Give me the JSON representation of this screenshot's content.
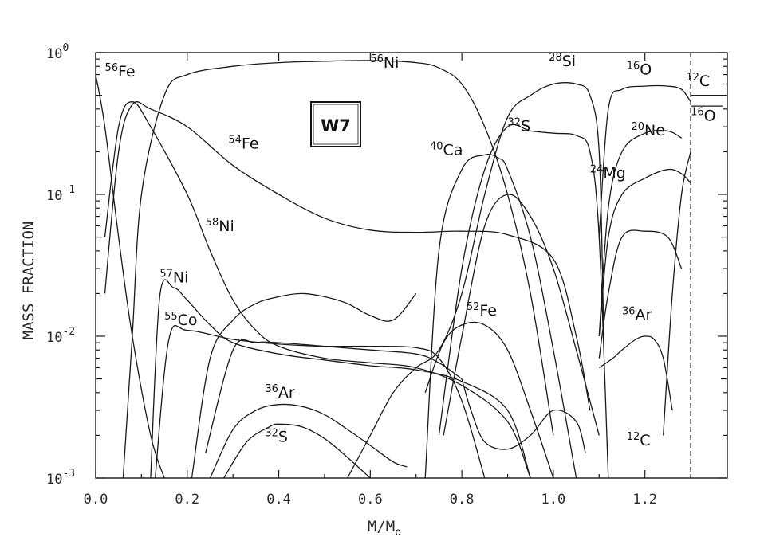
{
  "chart_data": {
    "type": "line",
    "title": "",
    "xlabel": "M/M",
    "xlabel_sub": "o",
    "ylabel": "MASS FRACTION",
    "box_label": "W7",
    "xlim": [
      0.0,
      1.38
    ],
    "ylim": [
      0.001,
      1.0
    ],
    "yscale": "log",
    "grid": false,
    "x_ticks": [
      0.0,
      0.2,
      0.4,
      0.6,
      0.8,
      1.0,
      1.2
    ],
    "x_tick_labels": [
      "0.0",
      "0.2",
      "0.4",
      "0.6",
      "0.8",
      "1.0",
      "1.2"
    ],
    "y_ticks": [
      0.001,
      0.01,
      0.1,
      1.0
    ],
    "y_tick_labels": [
      {
        "base": "10",
        "exp": "-3"
      },
      {
        "base": "10",
        "exp": "-2"
      },
      {
        "base": "10",
        "exp": "-1"
      },
      {
        "base": "10",
        "exp": "0"
      }
    ],
    "boundary_x": 1.3,
    "series": [
      {
        "name": "56Fe",
        "x": [
          0.0,
          0.02,
          0.05,
          0.08,
          0.12,
          0.15
        ],
        "y": [
          0.7,
          0.3,
          0.05,
          0.01,
          0.002,
          0.001
        ]
      },
      {
        "name": "56Ni",
        "x": [
          0.06,
          0.08,
          0.1,
          0.15,
          0.2,
          0.3,
          0.4,
          0.5,
          0.6,
          0.7,
          0.75,
          0.8,
          0.85,
          0.9,
          0.95,
          1.0
        ],
        "y": [
          0.001,
          0.01,
          0.1,
          0.5,
          0.7,
          0.8,
          0.85,
          0.87,
          0.88,
          0.85,
          0.78,
          0.6,
          0.3,
          0.1,
          0.02,
          0.002
        ]
      },
      {
        "name": "54Fe",
        "x": [
          0.02,
          0.05,
          0.08,
          0.12,
          0.2,
          0.3,
          0.4,
          0.5,
          0.6,
          0.7,
          0.8,
          0.9,
          1.0,
          1.05,
          1.08
        ],
        "y": [
          0.02,
          0.2,
          0.43,
          0.4,
          0.3,
          0.16,
          0.1,
          0.068,
          0.056,
          0.054,
          0.055,
          0.052,
          0.035,
          0.01,
          0.003
        ]
      },
      {
        "name": "58Ni",
        "x": [
          0.02,
          0.05,
          0.08,
          0.12,
          0.2,
          0.25,
          0.3,
          0.35,
          0.4,
          0.5,
          0.6,
          0.7,
          0.8,
          0.9,
          0.95
        ],
        "y": [
          0.05,
          0.3,
          0.45,
          0.3,
          0.1,
          0.04,
          0.018,
          0.011,
          0.0085,
          0.007,
          0.0065,
          0.006,
          0.0045,
          0.0025,
          0.001
        ]
      },
      {
        "name": "57Ni",
        "x": [
          0.12,
          0.14,
          0.17,
          0.2,
          0.25,
          0.3,
          0.4,
          0.5,
          0.6,
          0.7,
          0.8,
          0.9,
          0.95
        ],
        "y": [
          0.001,
          0.019,
          0.022,
          0.018,
          0.012,
          0.009,
          0.0075,
          0.0068,
          0.0062,
          0.0058,
          0.0048,
          0.003,
          0.001
        ]
      },
      {
        "name": "55Co",
        "x": [
          0.13,
          0.16,
          0.2,
          0.3,
          0.4,
          0.5,
          0.6,
          0.7,
          0.75,
          0.8,
          0.85
        ],
        "y": [
          0.001,
          0.0095,
          0.011,
          0.0095,
          0.0088,
          0.0085,
          0.0085,
          0.0083,
          0.007,
          0.0035,
          0.001
        ]
      },
      {
        "name": "36Ar",
        "x": [
          0.25,
          0.3,
          0.35,
          0.4,
          0.45,
          0.5,
          0.55,
          0.6,
          0.65,
          0.68
        ],
        "y": [
          0.001,
          0.0022,
          0.003,
          0.0033,
          0.0032,
          0.0028,
          0.0022,
          0.0017,
          0.0013,
          0.0012
        ]
      },
      {
        "name": "32S",
        "x": [
          0.28,
          0.33,
          0.38,
          0.4,
          0.45,
          0.5,
          0.55,
          0.6
        ],
        "y": [
          0.001,
          0.0018,
          0.0023,
          0.0024,
          0.0023,
          0.0019,
          0.0014,
          0.001
        ]
      },
      {
        "name": "",
        "x": [
          0.21,
          0.25,
          0.3,
          0.35,
          0.4,
          0.45,
          0.5,
          0.55,
          0.6,
          0.65,
          0.7
        ],
        "y": [
          0.001,
          0.007,
          0.013,
          0.017,
          0.019,
          0.02,
          0.019,
          0.017,
          0.014,
          0.013,
          0.02
        ]
      },
      {
        "name": "",
        "x": [
          0.24,
          0.3,
          0.35,
          0.4,
          0.5,
          0.6,
          0.7,
          0.75,
          0.8
        ],
        "y": [
          0.0015,
          0.008,
          0.009,
          0.009,
          0.0085,
          0.008,
          0.0075,
          0.0065,
          0.005
        ]
      },
      {
        "name": "28Si",
        "x": [
          0.55,
          0.6,
          0.65,
          0.7,
          0.75,
          0.8,
          0.85,
          0.9,
          0.95,
          1.0,
          1.05,
          1.08,
          1.1,
          1.11
        ],
        "y": [
          0.001,
          0.002,
          0.004,
          0.006,
          0.008,
          0.02,
          0.1,
          0.35,
          0.5,
          0.6,
          0.6,
          0.5,
          0.2,
          0.01
        ]
      },
      {
        "name": "32S",
        "x": [
          0.75,
          0.8,
          0.85,
          0.9,
          0.95,
          1.0,
          1.05,
          1.08,
          1.1,
          1.12
        ],
        "y": [
          0.002,
          0.03,
          0.15,
          0.3,
          0.28,
          0.27,
          0.26,
          0.2,
          0.05,
          0.001
        ]
      },
      {
        "name": "40Ca",
        "x": [
          0.72,
          0.75,
          0.8,
          0.85,
          0.88,
          0.9,
          0.95,
          1.0,
          1.05
        ],
        "y": [
          0.001,
          0.04,
          0.15,
          0.19,
          0.18,
          0.15,
          0.05,
          0.008,
          0.001
        ]
      },
      {
        "name": "52Fe",
        "x": [
          0.72,
          0.76,
          0.8,
          0.85,
          0.9,
          0.95,
          1.0
        ],
        "y": [
          0.004,
          0.009,
          0.012,
          0.012,
          0.008,
          0.003,
          0.001
        ]
      },
      {
        "name": "",
        "x": [
          0.76,
          0.8,
          0.85,
          0.9,
          0.95,
          1.0,
          1.05,
          1.1
        ],
        "y": [
          0.002,
          0.01,
          0.06,
          0.1,
          0.07,
          0.03,
          0.008,
          0.002
        ]
      },
      {
        "name": "",
        "x": [
          0.8,
          0.82,
          0.85,
          0.9,
          0.95,
          1.0,
          1.05,
          1.07
        ],
        "y": [
          0.005,
          0.003,
          0.0018,
          0.0016,
          0.002,
          0.003,
          0.0025,
          0.0015
        ]
      },
      {
        "name": "16O",
        "x": [
          1.1,
          1.12,
          1.15,
          1.2,
          1.25,
          1.28,
          1.3
        ],
        "y": [
          0.05,
          0.4,
          0.55,
          0.58,
          0.58,
          0.55,
          0.45
        ]
      },
      {
        "name": "20Ne",
        "x": [
          1.1,
          1.12,
          1.15,
          1.2,
          1.25,
          1.28
        ],
        "y": [
          0.01,
          0.08,
          0.2,
          0.27,
          0.28,
          0.25
        ]
      },
      {
        "name": "24Mg",
        "x": [
          1.1,
          1.12,
          1.15,
          1.2,
          1.25,
          1.28,
          1.3
        ],
        "y": [
          0.01,
          0.05,
          0.1,
          0.13,
          0.15,
          0.14,
          0.12
        ]
      },
      {
        "name": "",
        "x": [
          1.1,
          1.12,
          1.15,
          1.2,
          1.25,
          1.28
        ],
        "y": [
          0.007,
          0.02,
          0.05,
          0.055,
          0.05,
          0.03
        ]
      },
      {
        "name": "36Ar",
        "x": [
          1.1,
          1.13,
          1.15,
          1.18,
          1.2,
          1.22,
          1.24,
          1.26
        ],
        "y": [
          0.006,
          0.007,
          0.008,
          0.0095,
          0.01,
          0.0095,
          0.007,
          0.003
        ]
      },
      {
        "name": "12C",
        "x": [
          1.24,
          1.26,
          1.28,
          1.3
        ],
        "y": [
          0.002,
          0.02,
          0.1,
          0.2
        ]
      },
      {
        "name": "12C",
        "x": [
          1.3,
          1.33,
          1.37
        ],
        "y": [
          0.42,
          0.42,
          0.42
        ]
      },
      {
        "name": "16O",
        "x": [
          1.3,
          1.33,
          1.37
        ],
        "y": [
          0.5,
          0.5,
          0.5
        ]
      }
    ],
    "annotations": [
      {
        "mass": "56",
        "sym": "Fe",
        "x": 0.02,
        "y": 0.68
      },
      {
        "mass": "56",
        "sym": "Ni",
        "x": 0.6,
        "y": 0.78
      },
      {
        "mass": "54",
        "sym": "Fe",
        "x": 0.29,
        "y": 0.21
      },
      {
        "mass": "58",
        "sym": "Ni",
        "x": 0.24,
        "y": 0.055
      },
      {
        "mass": "57",
        "sym": "Ni",
        "x": 0.14,
        "y": 0.024
      },
      {
        "mass": "55",
        "sym": "Co",
        "x": 0.15,
        "y": 0.012
      },
      {
        "mass": "36",
        "sym": "Ar",
        "x": 0.37,
        "y": 0.0037
      },
      {
        "mass": "32",
        "sym": "S",
        "x": 0.37,
        "y": 0.0018
      },
      {
        "mass": "28",
        "sym": "Si",
        "x": 0.99,
        "y": 0.8
      },
      {
        "mass": "16",
        "sym": "O",
        "x": 1.16,
        "y": 0.7
      },
      {
        "mass": "12",
        "sym": "C",
        "x": 1.29,
        "y": 0.58
      },
      {
        "mass": "16",
        "sym": "O",
        "x": 1.3,
        "y": 0.33
      },
      {
        "mass": "32",
        "sym": "S",
        "x": 0.9,
        "y": 0.28
      },
      {
        "mass": "20",
        "sym": "Ne",
        "x": 1.17,
        "y": 0.26
      },
      {
        "mass": "40",
        "sym": "Ca",
        "x": 0.73,
        "y": 0.19
      },
      {
        "mass": "24",
        "sym": "Mg",
        "x": 1.08,
        "y": 0.13
      },
      {
        "mass": "52",
        "sym": "Fe",
        "x": 0.81,
        "y": 0.014
      },
      {
        "mass": "36",
        "sym": "Ar",
        "x": 1.15,
        "y": 0.013
      },
      {
        "mass": "12",
        "sym": "C",
        "x": 1.16,
        "y": 0.0017
      }
    ]
  }
}
